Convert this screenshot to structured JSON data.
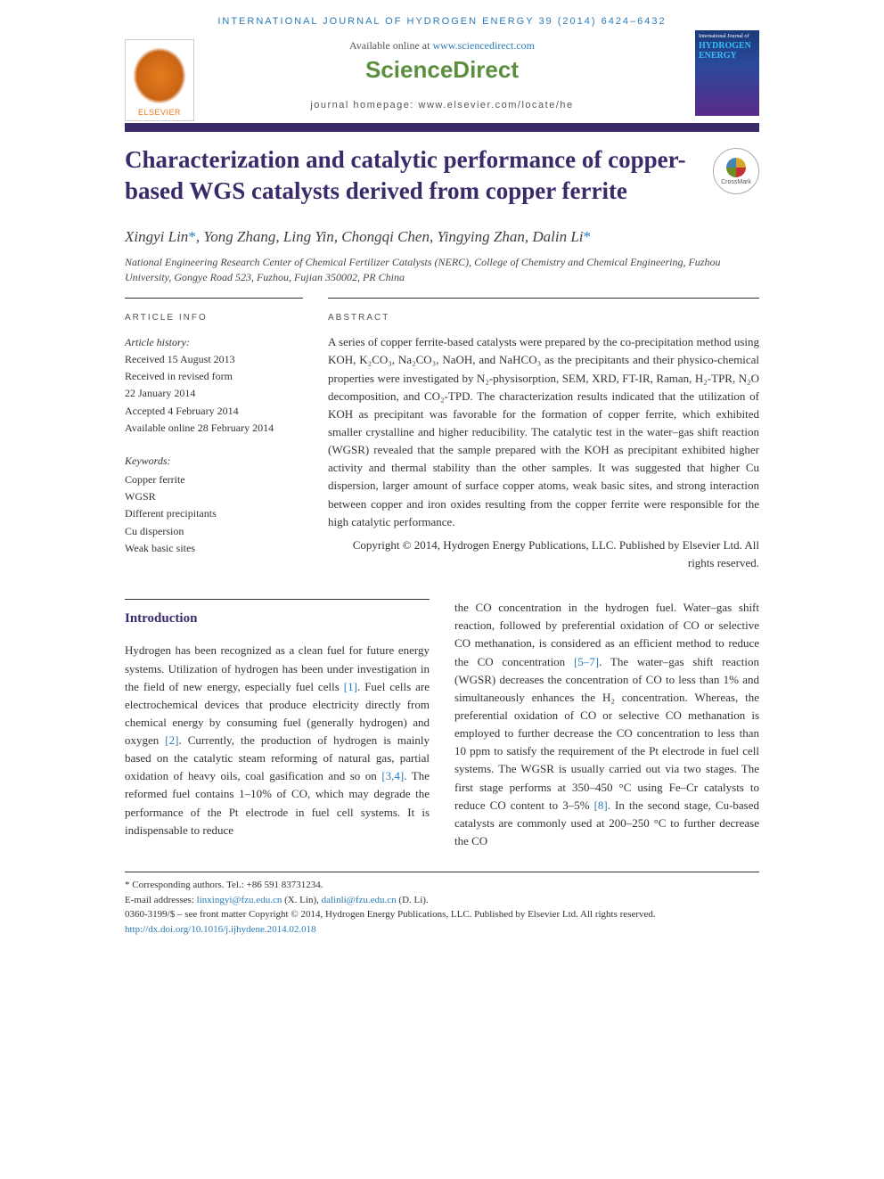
{
  "header": {
    "running_head": "INTERNATIONAL JOURNAL OF HYDROGEN ENERGY 39 (2014) 6424–6432",
    "available_prefix": "Available online at ",
    "available_link": "www.sciencedirect.com",
    "brand": "ScienceDirect",
    "homepage_label": "journal homepage: www.elsevier.com/locate/he",
    "elsevier": "ELSEVIER",
    "cover_small": "International Journal of",
    "cover_main_1": "HYDROGEN",
    "cover_main_2": "ENERGY"
  },
  "crossmark": "CrossMark",
  "title": "Characterization and catalytic performance of copper-based WGS catalysts derived from copper ferrite",
  "authors": {
    "a1": "Xingyi Lin",
    "a2": "Yong Zhang",
    "a3": "Ling Yin",
    "a4": "Chongqi Chen",
    "a5": "Yingying Zhan",
    "a6": "Dalin Li",
    "corr": "*",
    "sep": ", "
  },
  "affiliation": "National Engineering Research Center of Chemical Fertilizer Catalysts (NERC), College of Chemistry and Chemical Engineering, Fuzhou University, Gongye Road 523, Fuzhou, Fujian 350002, PR China",
  "info": {
    "heading": "ARTICLE INFO",
    "history_label": "Article history:",
    "h1": "Received 15 August 2013",
    "h2": "Received in revised form",
    "h3": "22 January 2014",
    "h4": "Accepted 4 February 2014",
    "h5": "Available online 28 February 2014",
    "keywords_label": "Keywords:",
    "k1": "Copper ferrite",
    "k2": "WGSR",
    "k3": "Different precipitants",
    "k4": "Cu dispersion",
    "k5": "Weak basic sites"
  },
  "abstract": {
    "heading": "ABSTRACT",
    "text": "A series of copper ferrite-based catalysts were prepared by the co-precipitation method using KOH, K₂CO₃, Na₂CO₃, NaOH, and NaHCO₃ as the precipitants and their physico-chemical properties were investigated by N₂-physisorption, SEM, XRD, FT-IR, Raman, H₂-TPR, N₂O decomposition, and CO₂-TPD. The characterization results indicated that the utilization of KOH as precipitant was favorable for the formation of copper ferrite, which exhibited smaller crystalline and higher reducibility. The catalytic test in the water–gas shift reaction (WGSR) revealed that the sample prepared with the KOH as precipitant exhibited higher activity and thermal stability than the other samples. It was suggested that higher Cu dispersion, larger amount of surface copper atoms, weak basic sites, and strong interaction between copper and iron oxides resulting from the copper ferrite were responsible for the high catalytic performance.",
    "copyright": "Copyright © 2014, Hydrogen Energy Publications, LLC. Published by Elsevier Ltd. All rights reserved."
  },
  "body": {
    "section": "Introduction",
    "col1": "Hydrogen has been recognized as a clean fuel for future energy systems. Utilization of hydrogen has been under investigation in the field of new energy, especially fuel cells [1]. Fuel cells are electrochemical devices that produce electricity directly from chemical energy by consuming fuel (generally hydrogen) and oxygen [2]. Currently, the production of hydrogen is mainly based on the catalytic steam reforming of natural gas, partial oxidation of heavy oils, coal gasification and so on [3,4]. The reformed fuel contains 1–10% of CO, which may degrade the performance of the Pt electrode in fuel cell systems. It is indispensable to reduce",
    "col2": "the CO concentration in the hydrogen fuel. Water–gas shift reaction, followed by preferential oxidation of CO or selective CO methanation, is considered as an efficient method to reduce the CO concentration [5–7]. The water–gas shift reaction (WGSR) decreases the concentration of CO to less than 1% and simultaneously enhances the H₂ concentration. Whereas, the preferential oxidation of CO or selective CO methanation is employed to further decrease the CO concentration to less than 10 ppm to satisfy the requirement of the Pt electrode in fuel cell systems. The WGSR is usually carried out via two stages. The first stage performs at 350–450 °C using Fe–Cr catalysts to reduce CO content to 3–5% [8]. In the second stage, Cu-based catalysts are commonly used at 200–250 °C to further decrease the CO",
    "refs": {
      "r1": "[1]",
      "r2": "[2]",
      "r34": "[3,4]",
      "r57": "[5–7]",
      "r8": "[8]"
    }
  },
  "footer": {
    "corr_label": "* Corresponding authors. Tel.: +86 591 83731234.",
    "email_label": "E-mail addresses: ",
    "email1": "linxingyi@fzu.edu.cn",
    "email1_name": " (X. Lin), ",
    "email2": "dalinli@fzu.edu.cn",
    "email2_name": " (D. Li).",
    "issn": "0360-3199/$ – see front matter Copyright © 2014, Hydrogen Energy Publications, LLC. Published by Elsevier Ltd. All rights reserved.",
    "doi": "http://dx.doi.org/10.1016/j.ijhydene.2014.02.018"
  },
  "refcolor": "#2a7bb8"
}
